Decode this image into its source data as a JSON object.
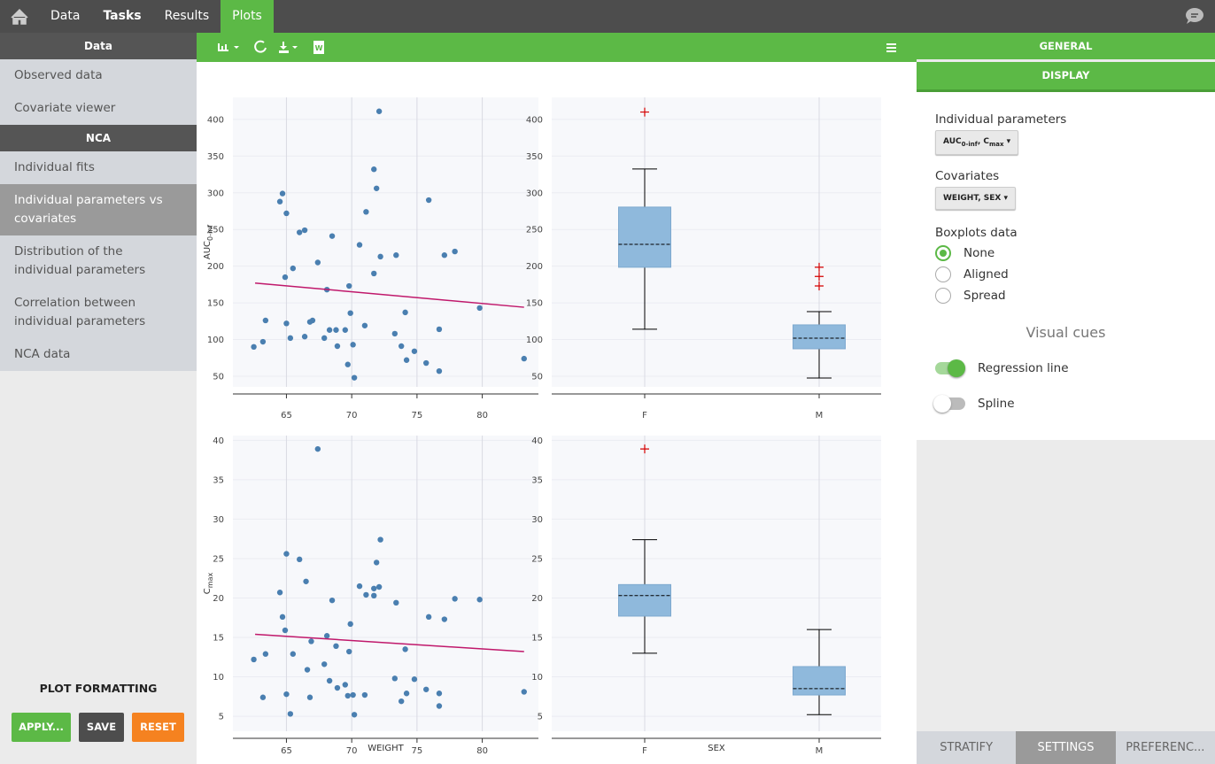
{
  "nav": {
    "items": [
      "Data",
      "Tasks",
      "Results",
      "Plots"
    ]
  },
  "sidebar": {
    "sections": [
      {
        "title": "Data",
        "items": [
          {
            "label": "Observed data"
          },
          {
            "label": "Covariate viewer"
          }
        ]
      },
      {
        "title": "NCA",
        "items": [
          {
            "label": "Individual fits"
          },
          {
            "label": "Individual parameters vs covariates",
            "selected": true
          },
          {
            "label": "Distribution of the individual parameters"
          },
          {
            "label": "Correlation between individual parameters"
          },
          {
            "label": "NCA data"
          }
        ]
      }
    ],
    "formatting_title": "PLOT FORMATTING",
    "buttons": [
      "APPLY...",
      "SAVE",
      "RESET"
    ]
  },
  "settings": {
    "tabs": [
      "GENERAL",
      "DISPLAY"
    ],
    "individual_parameters_label": "Individual parameters",
    "individual_parameters_value": [
      {
        "text": "AUC",
        "sub": "0-inf"
      },
      {
        "text": "C",
        "sub": "max"
      }
    ],
    "separator": ", ",
    "covariates_label": "Covariates",
    "covariates_value": "WEIGHT, SEX",
    "boxplots_label": "Boxplots data",
    "boxplots_options": [
      "None",
      "Aligned",
      "Spread"
    ],
    "boxplots_selected": 0,
    "visual_cues_title": "Visual cues",
    "toggles": [
      {
        "label": "Regression line",
        "on": true
      },
      {
        "label": "Spline",
        "on": false
      }
    ],
    "bottom_tabs": [
      "STRATIFY",
      "SETTINGS",
      "PREFERENC..."
    ],
    "active_bottom_tab": 1
  },
  "chart_data": [
    {
      "type": "scatter",
      "ylabel": "AUC",
      "ylabel_sub": "0-inf",
      "xlim": [
        60.9,
        84.3
      ],
      "ylim": [
        35.5,
        430
      ],
      "xticks": [
        65,
        70,
        75,
        80
      ],
      "yticks": [
        50,
        100,
        150,
        200,
        250,
        300,
        350,
        400
      ],
      "grid": true,
      "points": {
        "color": "#4a7fb0",
        "x": [
          62.5,
          63.2,
          63.4,
          64.5,
          64.7,
          65.0,
          64.9,
          65.0,
          65.3,
          65.5,
          66.0,
          66.4,
          66.4,
          66.8,
          67.0,
          67.4,
          67.9,
          68.1,
          68.3,
          68.5,
          68.8,
          68.9,
          69.5,
          69.7,
          69.8,
          69.9,
          70.1,
          70.2,
          70.6,
          71.0,
          71.1,
          71.7,
          71.7,
          71.9,
          72.1,
          72.2,
          73.3,
          73.4,
          73.8,
          74.1,
          74.2,
          74.8,
          75.7,
          75.9,
          76.7,
          76.7,
          77.1,
          77.9,
          79.8,
          83.2
        ],
        "values": [
          90,
          97,
          126,
          288,
          299,
          272,
          185,
          122,
          102,
          197,
          246,
          249,
          104,
          124,
          126,
          205,
          102,
          168,
          113,
          241,
          113,
          91,
          113,
          66,
          173,
          136,
          93,
          48,
          229,
          119,
          274,
          190,
          332,
          306,
          411,
          213,
          108,
          215,
          91,
          137,
          72,
          84,
          68,
          290,
          114,
          57,
          215,
          220,
          143,
          74
        ]
      },
      "regression": {
        "color": "#c0186b",
        "x": [
          62.6,
          83.2
        ],
        "values": [
          177,
          144
        ]
      }
    },
    {
      "type": "box",
      "categories": [
        "F",
        "M"
      ],
      "ylim": [
        35.5,
        430
      ],
      "yticks": [
        50,
        100,
        150,
        200,
        250,
        300,
        350,
        400
      ],
      "grid": true,
      "color": "#8fb9dc",
      "flier_color": "#d40000",
      "boxes": [
        {
          "whislo": 114,
          "q1": 198.5,
          "med": 229.8,
          "q3": 280.5,
          "whishi": 332.4,
          "fliers": [
            410
          ]
        },
        {
          "whislo": 47.6,
          "q1": 87.4,
          "med": 101.9,
          "q3": 120,
          "whishi": 138,
          "fliers": [
            198.5,
            186,
            173
          ]
        }
      ]
    },
    {
      "type": "scatter",
      "ylabel": "C",
      "ylabel_sub": "max",
      "xlabel": "WEIGHT",
      "xlim": [
        60.9,
        84.3
      ],
      "ylim": [
        3.1,
        40.6
      ],
      "xticks": [
        65,
        70,
        75,
        80
      ],
      "yticks": [
        5,
        10,
        15,
        20,
        25,
        30,
        35,
        40
      ],
      "grid": true,
      "points": {
        "color": "#4a7fb0",
        "x": [
          62.5,
          63.4,
          63.2,
          64.5,
          64.7,
          64.9,
          65.0,
          65.0,
          65.3,
          65.5,
          66.0,
          66.5,
          66.6,
          66.8,
          66.9,
          67.4,
          67.9,
          68.1,
          68.3,
          68.5,
          68.8,
          68.9,
          69.5,
          69.7,
          69.8,
          69.9,
          70.1,
          70.2,
          70.6,
          71.0,
          71.1,
          71.7,
          71.7,
          71.9,
          72.1,
          72.2,
          73.3,
          73.4,
          73.8,
          74.1,
          74.2,
          74.8,
          75.7,
          75.9,
          76.7,
          76.7,
          77.1,
          77.9,
          79.8,
          83.2
        ],
        "values": [
          12.2,
          12.9,
          7.4,
          20.7,
          17.6,
          15.9,
          25.6,
          7.8,
          5.3,
          12.9,
          24.9,
          22.1,
          10.9,
          7.4,
          14.5,
          38.9,
          11.6,
          15.2,
          9.5,
          19.7,
          13.9,
          8.6,
          9.0,
          7.6,
          13.2,
          16.7,
          7.7,
          5.2,
          21.5,
          7.7,
          20.4,
          20.3,
          21.2,
          24.5,
          21.4,
          27.4,
          9.8,
          19.4,
          6.9,
          13.5,
          7.9,
          9.7,
          8.4,
          17.6,
          6.3,
          7.9,
          17.3,
          19.9,
          19.8,
          8.1
        ]
      },
      "regression": {
        "color": "#c0186b",
        "x": [
          62.6,
          83.2
        ],
        "values": [
          15.4,
          13.2
        ]
      }
    },
    {
      "type": "box",
      "categories": [
        "F",
        "M"
      ],
      "xlabel": "SEX",
      "ylim": [
        3.1,
        40.6
      ],
      "yticks": [
        5,
        10,
        15,
        20,
        25,
        30,
        35,
        40
      ],
      "grid": true,
      "color": "#8fb9dc",
      "flier_color": "#d40000",
      "boxes": [
        {
          "whislo": 13.0,
          "q1": 17.7,
          "med": 20.3,
          "q3": 21.7,
          "whishi": 27.4,
          "fliers": [
            38.9
          ]
        },
        {
          "whislo": 5.2,
          "q1": 7.7,
          "med": 8.5,
          "q3": 11.3,
          "whishi": 16.0,
          "fliers": []
        }
      ]
    }
  ]
}
